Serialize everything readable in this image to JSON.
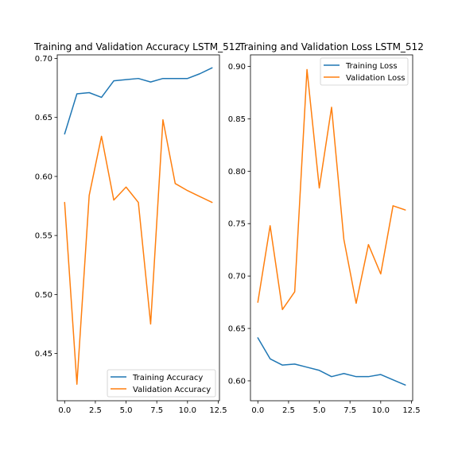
{
  "colors": {
    "training": "#1f77b4",
    "validation": "#ff7f0e"
  },
  "chart_data": [
    {
      "type": "line",
      "title": "Training and Validation Accuracy LSTM_512",
      "xlabel": "",
      "ylabel": "",
      "x": [
        0,
        1,
        2,
        3,
        4,
        5,
        6,
        7,
        8,
        9,
        10,
        11,
        12
      ],
      "xlim": [
        -0.6,
        12.6
      ],
      "ylim": [
        0.41,
        0.703
      ],
      "xticks": [
        0.0,
        2.5,
        5.0,
        7.5,
        10.0,
        12.5
      ],
      "xtick_labels": [
        "0.0",
        "2.5",
        "5.0",
        "7.5",
        "10.0",
        "12.5"
      ],
      "yticks": [
        0.45,
        0.5,
        0.55,
        0.6,
        0.65,
        0.7
      ],
      "ytick_labels": [
        "0.45",
        "0.50",
        "0.55",
        "0.60",
        "0.65",
        "0.70"
      ],
      "legend_position": "lower-right",
      "grid": false,
      "series": [
        {
          "name": "Training Accuracy",
          "color": "#1f77b4",
          "values": [
            0.636,
            0.67,
            0.671,
            0.667,
            0.681,
            0.682,
            0.683,
            0.68,
            0.683,
            0.683,
            0.683,
            0.687,
            0.692
          ]
        },
        {
          "name": "Validation Accuracy",
          "color": "#ff7f0e",
          "values": [
            0.578,
            0.424,
            0.584,
            0.634,
            0.58,
            0.591,
            0.578,
            0.475,
            0.648,
            0.594,
            0.588,
            0.583,
            0.578
          ]
        }
      ]
    },
    {
      "type": "line",
      "title": "Training and Validation Loss LSTM_512",
      "xlabel": "",
      "ylabel": "",
      "x": [
        0,
        1,
        2,
        3,
        4,
        5,
        6,
        7,
        8,
        9,
        10,
        11,
        12
      ],
      "xlim": [
        -0.6,
        12.6
      ],
      "ylim": [
        0.581,
        0.911
      ],
      "xticks": [
        0.0,
        2.5,
        5.0,
        7.5,
        10.0,
        12.5
      ],
      "xtick_labels": [
        "0.0",
        "2.5",
        "5.0",
        "7.5",
        "10.0",
        "12.5"
      ],
      "yticks": [
        0.6,
        0.65,
        0.7,
        0.75,
        0.8,
        0.85,
        0.9
      ],
      "ytick_labels": [
        "0.60",
        "0.65",
        "0.70",
        "0.75",
        "0.80",
        "0.85",
        "0.90"
      ],
      "legend_position": "upper-right",
      "grid": false,
      "series": [
        {
          "name": "Training Loss",
          "color": "#1f77b4",
          "values": [
            0.641,
            0.621,
            0.615,
            0.616,
            0.613,
            0.61,
            0.604,
            0.607,
            0.604,
            0.604,
            0.606,
            0.601,
            0.596
          ]
        },
        {
          "name": "Validation Loss",
          "color": "#ff7f0e",
          "values": [
            0.675,
            0.748,
            0.668,
            0.685,
            0.897,
            0.784,
            0.861,
            0.735,
            0.674,
            0.73,
            0.702,
            0.767,
            0.763
          ]
        }
      ]
    }
  ]
}
